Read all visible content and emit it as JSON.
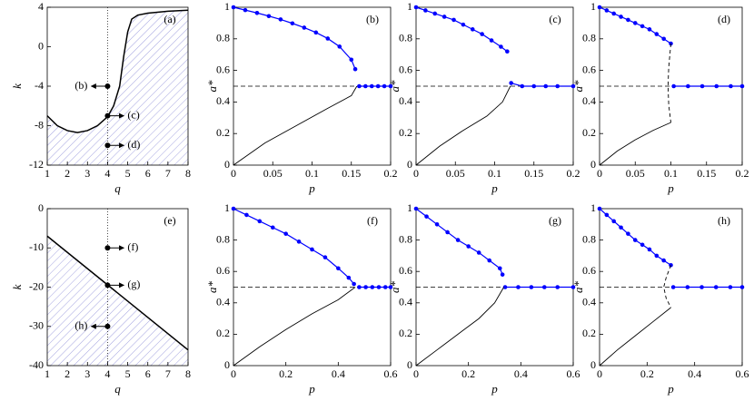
{
  "chart_data": [
    {
      "type": "region",
      "panel_label": "(a)",
      "xlabel": "q",
      "ylabel": "k",
      "xlim": [
        1,
        8
      ],
      "xticks": [
        1,
        2,
        3,
        4,
        5,
        6,
        7,
        8
      ],
      "ylim": [
        -12,
        4
      ],
      "yticks": [
        -12,
        -8,
        -4,
        0,
        4
      ],
      "fill_color": "#8c8cd8",
      "vline": 4,
      "series": [
        {
          "color": "#000000",
          "x": [
            1,
            1.5,
            2,
            2.5,
            3,
            3.5,
            4,
            4.3,
            4.6,
            4.8,
            5,
            5.2,
            5.5,
            6,
            7,
            8
          ],
          "values": [
            -7,
            -8,
            -8.5,
            -8.7,
            -8.5,
            -8,
            -7.1,
            -6,
            -4,
            -1,
            1.5,
            2.8,
            3.2,
            3.4,
            3.6,
            3.7
          ]
        }
      ],
      "points": [
        {
          "x": 4,
          "y": -4,
          "label": "(b)",
          "dir": "left"
        },
        {
          "x": 4,
          "y": -7,
          "label": "(c)",
          "dir": "right"
        },
        {
          "x": 4,
          "y": -10,
          "label": "(d)",
          "dir": "right"
        }
      ]
    },
    {
      "type": "line",
      "panel_label": "(b)",
      "xlabel": "p",
      "ylabel": "a*",
      "xlim": [
        0,
        0.2
      ],
      "xticks": [
        0,
        0.05,
        0.1,
        0.15,
        0.2
      ],
      "ylim": [
        0,
        1
      ],
      "yticks": [
        0,
        0.2,
        0.4,
        0.6,
        0.8,
        1
      ],
      "hline": 0.5,
      "series": [
        {
          "color": "#0000ff",
          "marker": true,
          "x": [
            0,
            0.015,
            0.03,
            0.045,
            0.06,
            0.075,
            0.09,
            0.105,
            0.12,
            0.135,
            0.15,
            0.155
          ],
          "values": [
            1,
            0.982,
            0.964,
            0.944,
            0.923,
            0.898,
            0.871,
            0.84,
            0.802,
            0.751,
            0.668,
            0.608
          ]
        },
        {
          "color": "#0000ff",
          "marker": true,
          "x": [
            0.16,
            0.168,
            0.176,
            0.184,
            0.192,
            0.2
          ],
          "values": [
            0.5,
            0.5,
            0.5,
            0.5,
            0.5,
            0.5
          ]
        },
        {
          "color": "#000000",
          "x": [
            0,
            0.04,
            0.08,
            0.12,
            0.15,
            0.157
          ],
          "values": [
            0,
            0.14,
            0.25,
            0.36,
            0.44,
            0.5
          ]
        }
      ]
    },
    {
      "type": "line",
      "panel_label": "(c)",
      "xlabel": "p",
      "ylabel": "a*",
      "xlim": [
        0,
        0.2
      ],
      "xticks": [
        0,
        0.05,
        0.1,
        0.15,
        0.2
      ],
      "ylim": [
        0,
        1
      ],
      "yticks": [
        0,
        0.2,
        0.4,
        0.6,
        0.8,
        1
      ],
      "hline": 0.5,
      "series": [
        {
          "color": "#0000ff",
          "marker": true,
          "x": [
            0,
            0.012,
            0.024,
            0.036,
            0.048,
            0.06,
            0.072,
            0.084,
            0.096,
            0.108,
            0.116
          ],
          "values": [
            1,
            0.98,
            0.96,
            0.94,
            0.92,
            0.89,
            0.86,
            0.83,
            0.79,
            0.75,
            0.72
          ]
        },
        {
          "color": "#0000ff",
          "marker": true,
          "x": [
            0.121,
            0.135,
            0.15,
            0.165,
            0.18,
            0.2
          ],
          "values": [
            0.52,
            0.5,
            0.5,
            0.5,
            0.5,
            0.5
          ]
        },
        {
          "color": "#000000",
          "x": [
            0,
            0.03,
            0.06,
            0.09,
            0.11,
            0.12
          ],
          "values": [
            0,
            0.12,
            0.22,
            0.31,
            0.4,
            0.5
          ]
        }
      ]
    },
    {
      "type": "line",
      "panel_label": "(d)",
      "xlabel": "p",
      "ylabel": "a*",
      "xlim": [
        0,
        0.2
      ],
      "xticks": [
        0,
        0.05,
        0.1,
        0.15,
        0.2
      ],
      "ylim": [
        0,
        1
      ],
      "yticks": [
        0,
        0.2,
        0.4,
        0.6,
        0.8,
        1
      ],
      "hline": 0.5,
      "series": [
        {
          "color": "#0000ff",
          "marker": true,
          "x": [
            0,
            0.01,
            0.02,
            0.03,
            0.04,
            0.05,
            0.06,
            0.07,
            0.08,
            0.09,
            0.1
          ],
          "values": [
            1,
            0.98,
            0.96,
            0.94,
            0.92,
            0.9,
            0.88,
            0.86,
            0.83,
            0.8,
            0.77
          ]
        },
        {
          "color": "#0000ff",
          "marker": true,
          "x": [
            0.104,
            0.124,
            0.144,
            0.164,
            0.184,
            0.2
          ],
          "values": [
            0.5,
            0.5,
            0.5,
            0.5,
            0.5,
            0.5
          ]
        },
        {
          "color": "#000000",
          "dash": true,
          "x": [
            0.1,
            0.097,
            0.096,
            0.097,
            0.1
          ],
          "values": [
            0.77,
            0.62,
            0.5,
            0.38,
            0.27
          ]
        },
        {
          "color": "#000000",
          "x": [
            0,
            0.025,
            0.05,
            0.075,
            0.1
          ],
          "values": [
            0,
            0.09,
            0.16,
            0.22,
            0.27
          ]
        }
      ]
    },
    {
      "type": "region",
      "panel_label": "(e)",
      "xlabel": "q",
      "ylabel": "k",
      "xlim": [
        1,
        8
      ],
      "xticks": [
        1,
        2,
        3,
        4,
        5,
        6,
        7,
        8
      ],
      "ylim": [
        -40,
        0
      ],
      "yticks": [
        -40,
        -30,
        -20,
        -10,
        0
      ],
      "fill_color": "#8c8cd8",
      "vline": 4,
      "series": [
        {
          "color": "#000000",
          "x": [
            1,
            8
          ],
          "values": [
            -7,
            -36
          ]
        }
      ],
      "points": [
        {
          "x": 4,
          "y": -10,
          "label": "(f)",
          "dir": "right"
        },
        {
          "x": 4,
          "y": -19.5,
          "label": "(g)",
          "dir": "right"
        },
        {
          "x": 4,
          "y": -30,
          "label": "(h)",
          "dir": "left"
        }
      ]
    },
    {
      "type": "line",
      "panel_label": "(f)",
      "xlabel": "p",
      "ylabel": "a*",
      "xlim": [
        0,
        0.6
      ],
      "xticks": [
        0,
        0.2,
        0.4,
        0.6
      ],
      "ylim": [
        0,
        1
      ],
      "yticks": [
        0,
        0.2,
        0.4,
        0.6,
        0.8,
        1
      ],
      "hline": 0.5,
      "series": [
        {
          "color": "#0000ff",
          "marker": true,
          "x": [
            0,
            0.05,
            0.1,
            0.15,
            0.2,
            0.25,
            0.3,
            0.35,
            0.4,
            0.44,
            0.46
          ],
          "values": [
            1,
            0.96,
            0.92,
            0.88,
            0.84,
            0.79,
            0.74,
            0.69,
            0.62,
            0.56,
            0.52
          ]
        },
        {
          "color": "#0000ff",
          "marker": true,
          "x": [
            0.48,
            0.505,
            0.53,
            0.555,
            0.58,
            0.6
          ],
          "values": [
            0.5,
            0.5,
            0.5,
            0.5,
            0.5,
            0.5
          ]
        },
        {
          "color": "#000000",
          "x": [
            0,
            0.1,
            0.2,
            0.3,
            0.4,
            0.465
          ],
          "values": [
            0,
            0.12,
            0.23,
            0.33,
            0.42,
            0.5
          ]
        }
      ]
    },
    {
      "type": "line",
      "panel_label": "(g)",
      "xlabel": "p",
      "ylabel": "a*",
      "xlim": [
        0,
        0.6
      ],
      "xticks": [
        0,
        0.2,
        0.4,
        0.6
      ],
      "ylim": [
        0,
        1
      ],
      "yticks": [
        0,
        0.2,
        0.4,
        0.6,
        0.8,
        1
      ],
      "hline": 0.5,
      "series": [
        {
          "color": "#0000ff",
          "marker": true,
          "x": [
            0,
            0.04,
            0.08,
            0.12,
            0.16,
            0.2,
            0.24,
            0.28,
            0.32,
            0.33
          ],
          "values": [
            1,
            0.95,
            0.9,
            0.85,
            0.8,
            0.76,
            0.72,
            0.67,
            0.62,
            0.58
          ]
        },
        {
          "color": "#0000ff",
          "marker": true,
          "x": [
            0.34,
            0.39,
            0.44,
            0.49,
            0.54,
            0.6
          ],
          "values": [
            0.5,
            0.5,
            0.5,
            0.5,
            0.5,
            0.5
          ]
        },
        {
          "color": "#000000",
          "x": [
            0,
            0.08,
            0.16,
            0.24,
            0.3,
            0.335
          ],
          "values": [
            0,
            0.1,
            0.2,
            0.3,
            0.4,
            0.5
          ]
        }
      ]
    },
    {
      "type": "line",
      "panel_label": "(h)",
      "xlabel": "p",
      "ylabel": "a*",
      "xlim": [
        0,
        0.6
      ],
      "xticks": [
        0,
        0.2,
        0.4,
        0.6
      ],
      "ylim": [
        0,
        1
      ],
      "yticks": [
        0,
        0.2,
        0.4,
        0.6,
        0.8,
        1
      ],
      "hline": 0.5,
      "series": [
        {
          "color": "#0000ff",
          "marker": true,
          "x": [
            0,
            0.03,
            0.06,
            0.09,
            0.12,
            0.15,
            0.18,
            0.21,
            0.24,
            0.27,
            0.3
          ],
          "values": [
            1,
            0.96,
            0.92,
            0.88,
            0.84,
            0.8,
            0.77,
            0.74,
            0.7,
            0.67,
            0.64
          ]
        },
        {
          "color": "#0000ff",
          "marker": true,
          "x": [
            0.31,
            0.37,
            0.43,
            0.49,
            0.55,
            0.6
          ],
          "values": [
            0.5,
            0.5,
            0.5,
            0.5,
            0.5,
            0.5
          ]
        },
        {
          "color": "#000000",
          "dash": true,
          "x": [
            0.3,
            0.28,
            0.27,
            0.28,
            0.3
          ],
          "values": [
            0.64,
            0.56,
            0.5,
            0.43,
            0.37
          ]
        },
        {
          "color": "#000000",
          "x": [
            0,
            0.075,
            0.15,
            0.225,
            0.3
          ],
          "values": [
            0,
            0.1,
            0.19,
            0.28,
            0.37
          ]
        }
      ]
    }
  ]
}
